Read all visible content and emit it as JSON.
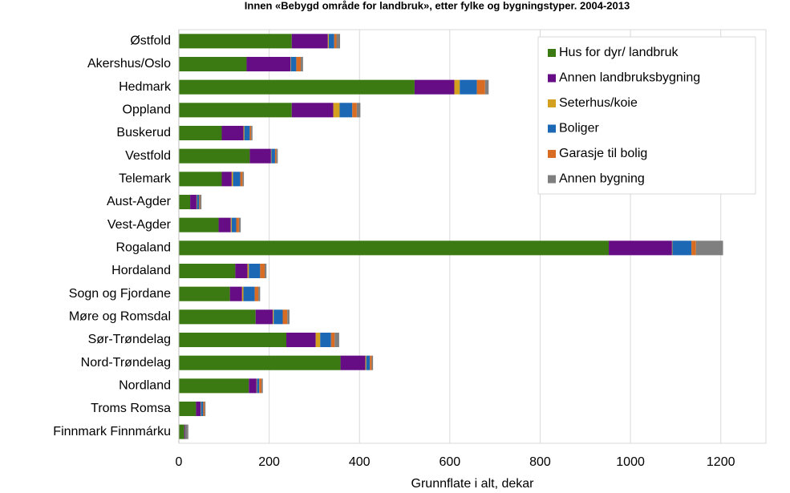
{
  "chart_data": {
    "type": "stacked_barh",
    "title": "Innen «Bebygd område for landbruk», etter fylke og bygningstyper. 2004-2013",
    "x_label": "Grunnflate i alt, dekar",
    "categories": [
      "Østfold",
      "Akershus/Oslo",
      "Hedmark",
      "Oppland",
      "Buskerud",
      "Vestfold",
      "Telemark",
      "Aust-Agder",
      "Vest-Agder",
      "Rogaland",
      "Hordaland",
      "Sogn og Fjordane",
      "Møre og Romsdal",
      "Sør-Trøndelag",
      "Nord-Trøndelag",
      "Nordland",
      "Troms Romsa",
      "Finnmark Finnmárku"
    ],
    "series": [
      {
        "name": "Hus for dyr/ landbruk",
        "color": "#3b7a12",
        "values": [
          250,
          150,
          522,
          250,
          95,
          157,
          95,
          25,
          88,
          952,
          125,
          113,
          170,
          238,
          358,
          155,
          38,
          12
        ]
      },
      {
        "name": "Annen landbruksbygning",
        "color": "#660d86",
        "values": [
          80,
          97,
          88,
          92,
          48,
          47,
          22,
          14,
          27,
          140,
          27,
          27,
          38,
          65,
          55,
          17,
          10,
          2
        ]
      },
      {
        "name": "Seterhus/koie",
        "color": "#d4a020",
        "values": [
          2,
          1,
          12,
          14,
          2,
          1,
          3,
          1,
          2,
          1,
          3,
          3,
          2,
          10,
          2,
          1,
          1,
          1
        ]
      },
      {
        "name": "Boliger",
        "color": "#1c68b4",
        "values": [
          12,
          12,
          38,
          28,
          12,
          8,
          16,
          5,
          10,
          42,
          25,
          25,
          20,
          24,
          8,
          5,
          5,
          2
        ]
      },
      {
        "name": "Garasje til bolig",
        "color": "#d86c22",
        "values": [
          5,
          10,
          18,
          10,
          3,
          3,
          5,
          2,
          6,
          10,
          10,
          8,
          10,
          8,
          4,
          5,
          3,
          1
        ]
      },
      {
        "name": "Annen bygning",
        "color": "#7f7f7f",
        "values": [
          8,
          5,
          8,
          8,
          3,
          3,
          3,
          3,
          4,
          60,
          4,
          4,
          5,
          10,
          3,
          3,
          2,
          3
        ]
      }
    ],
    "xlim": [
      0,
      1300
    ],
    "xticks": [
      0,
      200,
      400,
      600,
      800,
      1000,
      1200
    ],
    "grid": true,
    "legend": "upper right"
  }
}
